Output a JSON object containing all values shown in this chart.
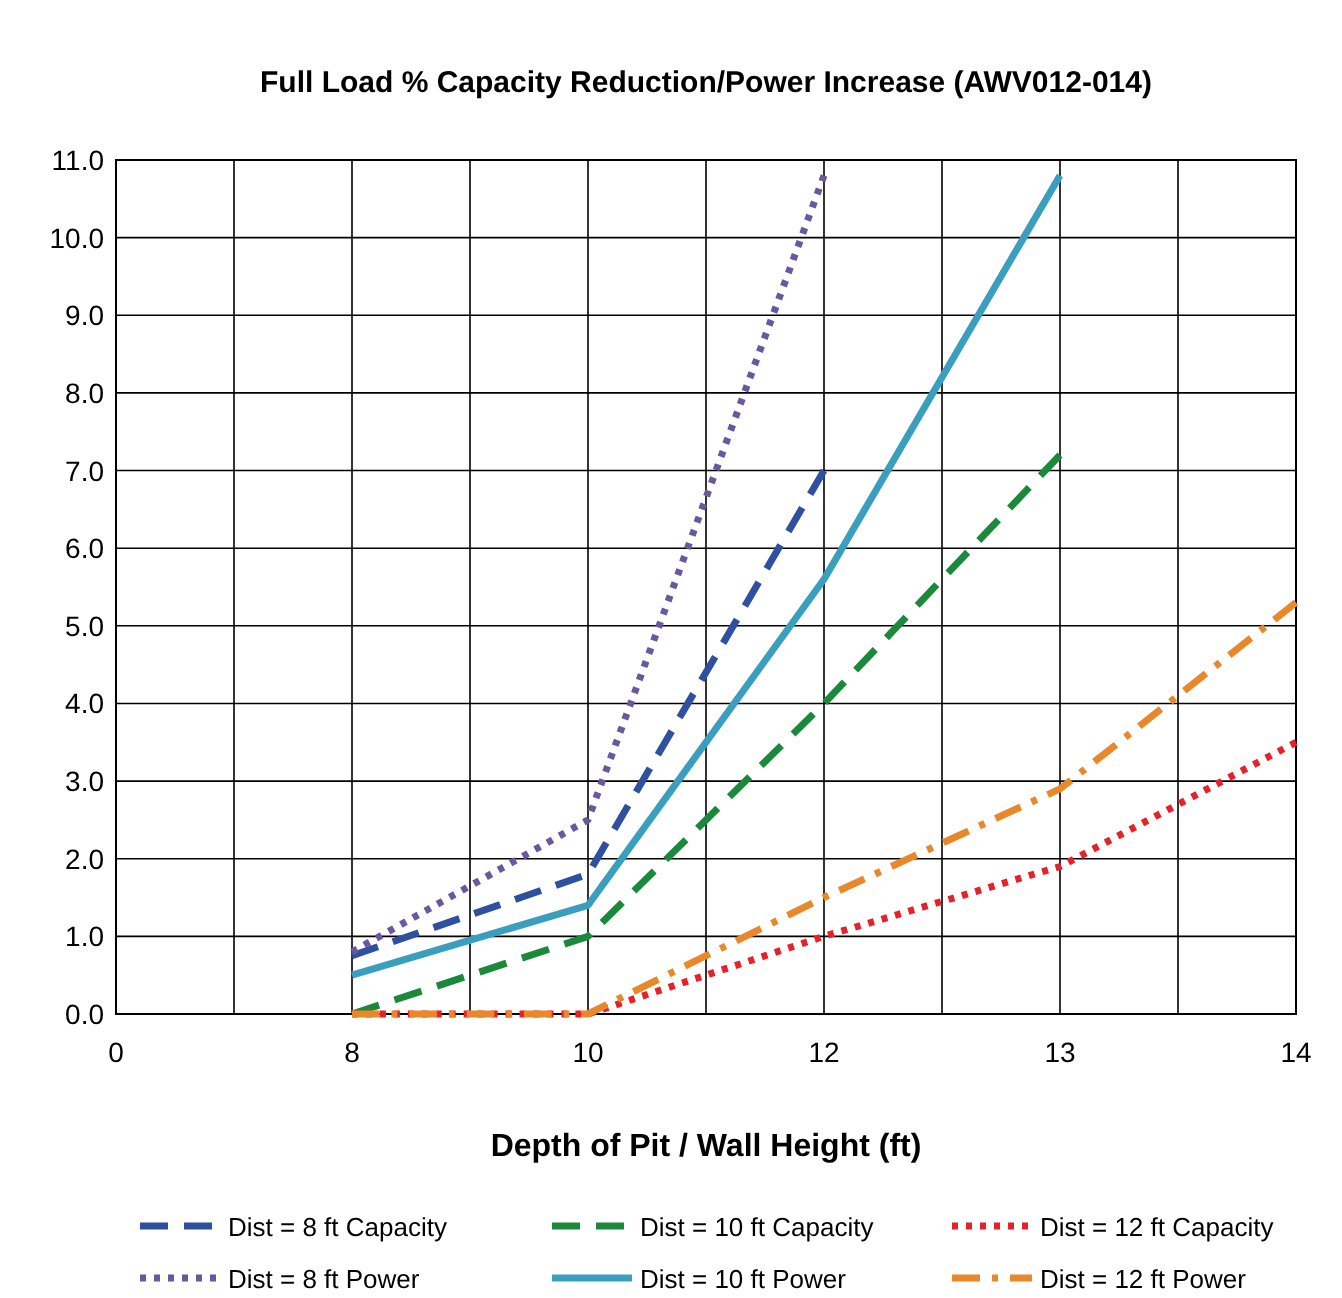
{
  "chart_data": {
    "type": "line",
    "title": "Full Load % Capacity Reduction/Power Increase (AWV012-014)",
    "xlabel": "Depth of Pit / Wall Height (ft)",
    "categories": [
      "0",
      "8",
      "10",
      "12",
      "13",
      "14"
    ],
    "ylim": [
      0,
      11
    ],
    "yticks": [
      {
        "value": 0,
        "label": "0.0"
      },
      {
        "value": 1,
        "label": "1.0"
      },
      {
        "value": 2,
        "label": "2.0"
      },
      {
        "value": 3,
        "label": "3.0"
      },
      {
        "value": 4,
        "label": "4.0"
      },
      {
        "value": 5,
        "label": "5.0"
      },
      {
        "value": 6,
        "label": "6.0"
      },
      {
        "value": 7,
        "label": "7.0"
      },
      {
        "value": 8,
        "label": "8.0"
      },
      {
        "value": 9,
        "label": "9.0"
      },
      {
        "value": 10,
        "label": "10.0"
      },
      {
        "value": 11,
        "label": "11.0"
      }
    ],
    "grid": true,
    "legend": "bottom",
    "series": [
      {
        "name": "Dist = 8 ft Capacity",
        "color": "#2f4fa0",
        "line_style": "dashed",
        "values": [
          null,
          0.75,
          1.8,
          7.0,
          null,
          null
        ]
      },
      {
        "name": "Dist = 10 ft Capacity",
        "color": "#1a8a3a",
        "line_style": "dashed",
        "values": [
          null,
          0,
          1.0,
          4.0,
          7.2,
          null
        ]
      },
      {
        "name": "Dist = 12 ft Capacity",
        "color": "#e8202a",
        "line_style": "dotted",
        "values": [
          null,
          0,
          0,
          1.0,
          1.9,
          3.5
        ]
      },
      {
        "name": "Dist = 8 ft Power",
        "color": "#6b57a0",
        "line_style": "dotted",
        "values": [
          null,
          0.8,
          2.5,
          10.8,
          null,
          null
        ]
      },
      {
        "name": "Dist = 10 ft Power",
        "color": "#3a9fbf",
        "line_style": "solid",
        "values": [
          null,
          0.5,
          1.4,
          5.6,
          10.8,
          null
        ]
      },
      {
        "name": "Dist = 12 ft Power",
        "color": "#e8882a",
        "line_style": "dashdot",
        "values": [
          null,
          0,
          0,
          1.5,
          2.9,
          5.3
        ]
      }
    ]
  }
}
